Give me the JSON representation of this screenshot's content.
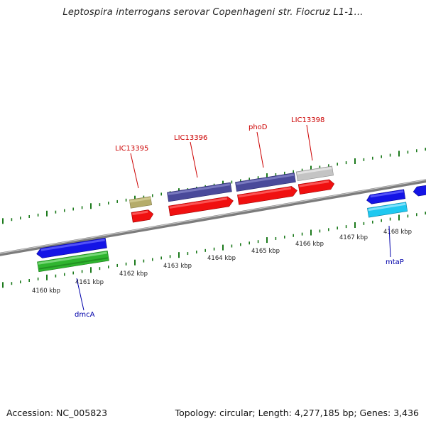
{
  "title": "Leptospira interrogans serovar Copenhageni str. Fiocruz L1-1...",
  "footer": {
    "accession": "Accession: NC_005823",
    "topology": "Topology: circular; Length: 4,277,185 bp; Genes: 3,436"
  },
  "scale_labels": [
    "4160 kbp",
    "4161 kbp",
    "4162 kbp",
    "4163 kbp",
    "4164 kbp",
    "4165 kbp",
    "4166 kbp",
    "4167 kbp",
    "4168 kbp"
  ],
  "gene_labels": {
    "lic13395": "LIC13395",
    "lic13396": "LIC13396",
    "phod": "phoD",
    "lic13398": "LIC13398",
    "dmca": "dmcA",
    "mtap": "mtaP"
  },
  "colors": {
    "red": "#f01010",
    "blue": "#1414e6",
    "purple": "#4a4a9a",
    "olive": "#b5ac6a",
    "gray": "#c4c4c4",
    "green": "#2fb52f",
    "cyan": "#1ec8f0",
    "tick_green": "#1c7a1c",
    "backbone": "#8a8a8a",
    "label_red": "#cc0000",
    "label_blue": "#0000aa"
  }
}
